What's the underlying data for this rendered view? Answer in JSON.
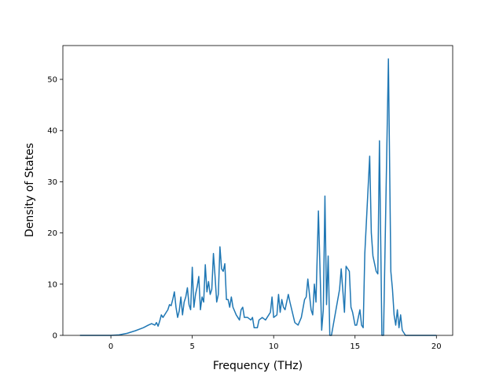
{
  "chart_data": {
    "type": "line",
    "xlabel": "Frequency (THz)",
    "ylabel": "Density of States",
    "xlim": [
      -2.95,
      21.0
    ],
    "ylim": [
      0,
      56.6
    ],
    "xticks": [
      0,
      5,
      10,
      15,
      20
    ],
    "yticks": [
      0,
      10,
      20,
      30,
      40,
      50
    ],
    "grid": false,
    "series": [
      {
        "color": "#1f77b4",
        "x": [
          -1.9,
          -1,
          0,
          0.5,
          1,
          1.5,
          2,
          2.3,
          2.5,
          2.7,
          2.8,
          2.9,
          3.0,
          3.1,
          3.2,
          3.4,
          3.5,
          3.6,
          3.7,
          3.8,
          3.9,
          4.0,
          4.1,
          4.2,
          4.3,
          4.4,
          4.5,
          4.6,
          4.7,
          4.8,
          4.9,
          5.0,
          5.1,
          5.2,
          5.3,
          5.4,
          5.5,
          5.6,
          5.7,
          5.8,
          5.9,
          6.0,
          6.1,
          6.2,
          6.3,
          6.4,
          6.5,
          6.6,
          6.7,
          6.8,
          6.9,
          7.0,
          7.1,
          7.2,
          7.3,
          7.4,
          7.5,
          7.7,
          7.9,
          8.0,
          8.1,
          8.2,
          8.4,
          8.6,
          8.7,
          8.8,
          9.0,
          9.1,
          9.3,
          9.5,
          9.8,
          9.9,
          10.0,
          10.2,
          10.3,
          10.4,
          10.5,
          10.6,
          10.7,
          10.9,
          11.0,
          11.3,
          11.5,
          11.7,
          11.9,
          12.0,
          12.1,
          12.3,
          12.4,
          12.5,
          12.6,
          12.75,
          12.95,
          13.05,
          13.15,
          13.25,
          13.35,
          13.45,
          13.55,
          14.05,
          14.15,
          14.35,
          14.45,
          14.65,
          14.75,
          14.85,
          15.0,
          15.1,
          15.3,
          15.4,
          15.5,
          15.6,
          15.9,
          16.0,
          16.1,
          16.3,
          16.4,
          16.5,
          16.65,
          16.75,
          17.05,
          17.2,
          17.3,
          17.4,
          17.5,
          17.6,
          17.7,
          17.8,
          17.9,
          18.1,
          18.2,
          20
        ],
        "values": [
          0,
          0,
          0,
          0.1,
          0.4,
          0.9,
          1.5,
          2.0,
          2.3,
          2.0,
          2.5,
          1.8,
          2.8,
          4.0,
          3.5,
          4.5,
          5.0,
          6.0,
          5.8,
          7.0,
          8.5,
          5.5,
          3.5,
          4.8,
          7.5,
          4.0,
          6.5,
          7.5,
          9.3,
          6.0,
          5.0,
          13.3,
          5.5,
          8.0,
          9.5,
          11.5,
          5.0,
          7.5,
          6.5,
          13.8,
          8.5,
          10.5,
          8.0,
          9.0,
          16.0,
          11.5,
          6.5,
          8.0,
          17.3,
          13.0,
          12.5,
          14.0,
          7.0,
          7.0,
          5.5,
          7.5,
          5.5,
          4.0,
          3.0,
          5.0,
          5.5,
          3.5,
          3.5,
          3.0,
          3.5,
          1.5,
          1.5,
          3.0,
          3.5,
          3.0,
          4.5,
          7.5,
          3.5,
          4.0,
          8.0,
          4.5,
          7.0,
          5.5,
          5.0,
          8.0,
          6.5,
          2.5,
          2.0,
          3.5,
          7.0,
          7.5,
          11.0,
          5.0,
          4.0,
          10.0,
          6.5,
          24.3,
          1.0,
          5.0,
          27.2,
          6.0,
          15.5,
          0,
          0,
          9.0,
          13.0,
          4.5,
          13.5,
          12.5,
          5.5,
          4.5,
          2.0,
          2.0,
          5.0,
          2.0,
          1.5,
          16.0,
          35.0,
          20.0,
          15.5,
          12.5,
          12.0,
          38.0,
          0,
          0,
          54.0,
          12.5,
          9.0,
          4.0,
          2.0,
          5.0,
          1.5,
          4.0,
          1.0,
          0,
          0,
          0
        ]
      }
    ]
  }
}
